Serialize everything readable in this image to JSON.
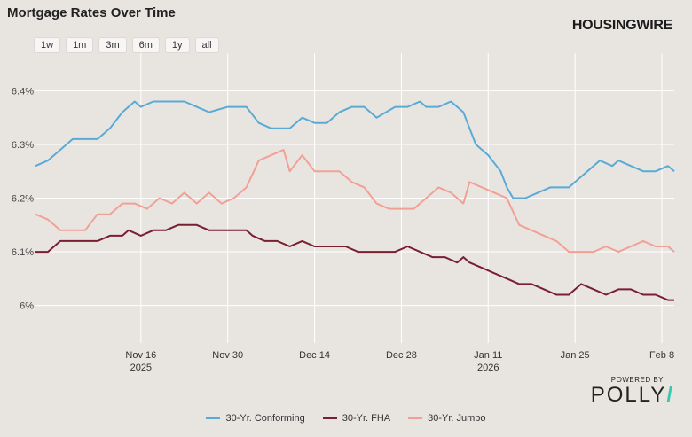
{
  "header": {
    "title": "Mortgage Rates Over Time",
    "brand": "HOUSINGWIRE"
  },
  "range_buttons": [
    "1w",
    "1m",
    "3m",
    "6m",
    "1y",
    "all"
  ],
  "footer": {
    "powered_by": "POWERED BY",
    "logo": "POLLY"
  },
  "chart_data": {
    "type": "line",
    "ylim": [
      5.93,
      6.47
    ],
    "y_ticks": [
      6.0,
      6.1,
      6.2,
      6.3,
      6.4
    ],
    "y_tick_labels": [
      "6%",
      "6.1%",
      "6.2%",
      "6.3%",
      "6.4%"
    ],
    "xlim": [
      "2025-10-30",
      "2026-02-10"
    ],
    "x_ticks": [
      {
        "date": "2025-11-16",
        "label": "Nov 16",
        "sub": "2025"
      },
      {
        "date": "2025-11-30",
        "label": "Nov 30",
        "sub": ""
      },
      {
        "date": "2025-12-14",
        "label": "Dec 14",
        "sub": ""
      },
      {
        "date": "2025-12-28",
        "label": "Dec 28",
        "sub": ""
      },
      {
        "date": "2026-01-11",
        "label": "Jan 11",
        "sub": "2026"
      },
      {
        "date": "2026-01-25",
        "label": "Jan 25",
        "sub": ""
      },
      {
        "date": "2026-02-08",
        "label": "Feb 8",
        "sub": ""
      }
    ],
    "grid": true,
    "legend_position": "bottom",
    "series": [
      {
        "name": "30-Yr. Conforming",
        "color": "#5aaad6",
        "points": [
          [
            "2025-10-30",
            6.26
          ],
          [
            "2025-11-01",
            6.27
          ],
          [
            "2025-11-03",
            6.29
          ],
          [
            "2025-11-05",
            6.31
          ],
          [
            "2025-11-07",
            6.31
          ],
          [
            "2025-11-09",
            6.31
          ],
          [
            "2025-11-11",
            6.33
          ],
          [
            "2025-11-13",
            6.36
          ],
          [
            "2025-11-15",
            6.38
          ],
          [
            "2025-11-16",
            6.37
          ],
          [
            "2025-11-18",
            6.38
          ],
          [
            "2025-11-20",
            6.38
          ],
          [
            "2025-11-23",
            6.38
          ],
          [
            "2025-11-25",
            6.37
          ],
          [
            "2025-11-27",
            6.36
          ],
          [
            "2025-11-30",
            6.37
          ],
          [
            "2025-12-03",
            6.37
          ],
          [
            "2025-12-05",
            6.34
          ],
          [
            "2025-12-07",
            6.33
          ],
          [
            "2025-12-10",
            6.33
          ],
          [
            "2025-12-12",
            6.35
          ],
          [
            "2025-12-14",
            6.34
          ],
          [
            "2025-12-16",
            6.34
          ],
          [
            "2025-12-18",
            6.36
          ],
          [
            "2025-12-20",
            6.37
          ],
          [
            "2025-12-22",
            6.37
          ],
          [
            "2025-12-24",
            6.35
          ],
          [
            "2025-12-27",
            6.37
          ],
          [
            "2025-12-29",
            6.37
          ],
          [
            "2025-12-31",
            6.38
          ],
          [
            "2026-01-01",
            6.37
          ],
          [
            "2026-01-03",
            6.37
          ],
          [
            "2026-01-05",
            6.38
          ],
          [
            "2026-01-07",
            6.36
          ],
          [
            "2026-01-08",
            6.33
          ],
          [
            "2026-01-09",
            6.3
          ],
          [
            "2026-01-11",
            6.28
          ],
          [
            "2026-01-13",
            6.25
          ],
          [
            "2026-01-14",
            6.22
          ],
          [
            "2026-01-15",
            6.2
          ],
          [
            "2026-01-17",
            6.2
          ],
          [
            "2026-01-19",
            6.21
          ],
          [
            "2026-01-21",
            6.22
          ],
          [
            "2026-01-24",
            6.22
          ],
          [
            "2026-01-25",
            6.23
          ],
          [
            "2026-01-27",
            6.25
          ],
          [
            "2026-01-29",
            6.27
          ],
          [
            "2026-01-31",
            6.26
          ],
          [
            "2026-02-01",
            6.27
          ],
          [
            "2026-02-03",
            6.26
          ],
          [
            "2026-02-05",
            6.25
          ],
          [
            "2026-02-07",
            6.25
          ],
          [
            "2026-02-09",
            6.26
          ],
          [
            "2026-02-10",
            6.25
          ]
        ]
      },
      {
        "name": "30-Yr. FHA",
        "color": "#7a1e32",
        "points": [
          [
            "2025-10-30",
            6.1
          ],
          [
            "2025-11-01",
            6.1
          ],
          [
            "2025-11-03",
            6.12
          ],
          [
            "2025-11-06",
            6.12
          ],
          [
            "2025-11-09",
            6.12
          ],
          [
            "2025-11-11",
            6.13
          ],
          [
            "2025-11-13",
            6.13
          ],
          [
            "2025-11-14",
            6.14
          ],
          [
            "2025-11-16",
            6.13
          ],
          [
            "2025-11-18",
            6.14
          ],
          [
            "2025-11-20",
            6.14
          ],
          [
            "2025-11-22",
            6.15
          ],
          [
            "2025-11-25",
            6.15
          ],
          [
            "2025-11-27",
            6.14
          ],
          [
            "2025-11-30",
            6.14
          ],
          [
            "2025-12-03",
            6.14
          ],
          [
            "2025-12-04",
            6.13
          ],
          [
            "2025-12-06",
            6.12
          ],
          [
            "2025-12-08",
            6.12
          ],
          [
            "2025-12-10",
            6.11
          ],
          [
            "2025-12-12",
            6.12
          ],
          [
            "2025-12-14",
            6.11
          ],
          [
            "2025-12-17",
            6.11
          ],
          [
            "2025-12-19",
            6.11
          ],
          [
            "2025-12-21",
            6.1
          ],
          [
            "2025-12-24",
            6.1
          ],
          [
            "2025-12-27",
            6.1
          ],
          [
            "2025-12-29",
            6.11
          ],
          [
            "2025-12-31",
            6.1
          ],
          [
            "2026-01-02",
            6.09
          ],
          [
            "2026-01-04",
            6.09
          ],
          [
            "2026-01-06",
            6.08
          ],
          [
            "2026-01-07",
            6.09
          ],
          [
            "2026-01-08",
            6.08
          ],
          [
            "2026-01-10",
            6.07
          ],
          [
            "2026-01-12",
            6.06
          ],
          [
            "2026-01-14",
            6.05
          ],
          [
            "2026-01-16",
            6.04
          ],
          [
            "2026-01-18",
            6.04
          ],
          [
            "2026-01-20",
            6.03
          ],
          [
            "2026-01-22",
            6.02
          ],
          [
            "2026-01-24",
            6.02
          ],
          [
            "2026-01-26",
            6.04
          ],
          [
            "2026-01-28",
            6.03
          ],
          [
            "2026-01-30",
            6.02
          ],
          [
            "2026-02-01",
            6.03
          ],
          [
            "2026-02-03",
            6.03
          ],
          [
            "2026-02-05",
            6.02
          ],
          [
            "2026-02-07",
            6.02
          ],
          [
            "2026-02-09",
            6.01
          ],
          [
            "2026-02-10",
            6.01
          ]
        ]
      },
      {
        "name": "30-Yr. Jumbo",
        "color": "#f2a096",
        "points": [
          [
            "2025-10-30",
            6.17
          ],
          [
            "2025-11-01",
            6.16
          ],
          [
            "2025-11-03",
            6.14
          ],
          [
            "2025-11-05",
            6.14
          ],
          [
            "2025-11-07",
            6.14
          ],
          [
            "2025-11-09",
            6.17
          ],
          [
            "2025-11-11",
            6.17
          ],
          [
            "2025-11-13",
            6.19
          ],
          [
            "2025-11-15",
            6.19
          ],
          [
            "2025-11-17",
            6.18
          ],
          [
            "2025-11-19",
            6.2
          ],
          [
            "2025-11-21",
            6.19
          ],
          [
            "2025-11-23",
            6.21
          ],
          [
            "2025-11-25",
            6.19
          ],
          [
            "2025-11-27",
            6.21
          ],
          [
            "2025-11-29",
            6.19
          ],
          [
            "2025-12-01",
            6.2
          ],
          [
            "2025-12-03",
            6.22
          ],
          [
            "2025-12-05",
            6.27
          ],
          [
            "2025-12-07",
            6.28
          ],
          [
            "2025-12-09",
            6.29
          ],
          [
            "2025-12-10",
            6.25
          ],
          [
            "2025-12-12",
            6.28
          ],
          [
            "2025-12-14",
            6.25
          ],
          [
            "2025-12-16",
            6.25
          ],
          [
            "2025-12-18",
            6.25
          ],
          [
            "2025-12-20",
            6.23
          ],
          [
            "2025-12-22",
            6.22
          ],
          [
            "2025-12-24",
            6.19
          ],
          [
            "2025-12-26",
            6.18
          ],
          [
            "2025-12-28",
            6.18
          ],
          [
            "2025-12-30",
            6.18
          ],
          [
            "2026-01-01",
            6.2
          ],
          [
            "2026-01-03",
            6.22
          ],
          [
            "2026-01-05",
            6.21
          ],
          [
            "2026-01-07",
            6.19
          ],
          [
            "2026-01-08",
            6.23
          ],
          [
            "2026-01-10",
            6.22
          ],
          [
            "2026-01-12",
            6.21
          ],
          [
            "2026-01-14",
            6.2
          ],
          [
            "2026-01-16",
            6.15
          ],
          [
            "2026-01-18",
            6.14
          ],
          [
            "2026-01-20",
            6.13
          ],
          [
            "2026-01-22",
            6.12
          ],
          [
            "2026-01-24",
            6.1
          ],
          [
            "2026-01-26",
            6.1
          ],
          [
            "2026-01-28",
            6.1
          ],
          [
            "2026-01-30",
            6.11
          ],
          [
            "2026-02-01",
            6.1
          ],
          [
            "2026-02-03",
            6.11
          ],
          [
            "2026-02-05",
            6.12
          ],
          [
            "2026-02-07",
            6.11
          ],
          [
            "2026-02-09",
            6.11
          ],
          [
            "2026-02-10",
            6.1
          ]
        ]
      }
    ]
  }
}
